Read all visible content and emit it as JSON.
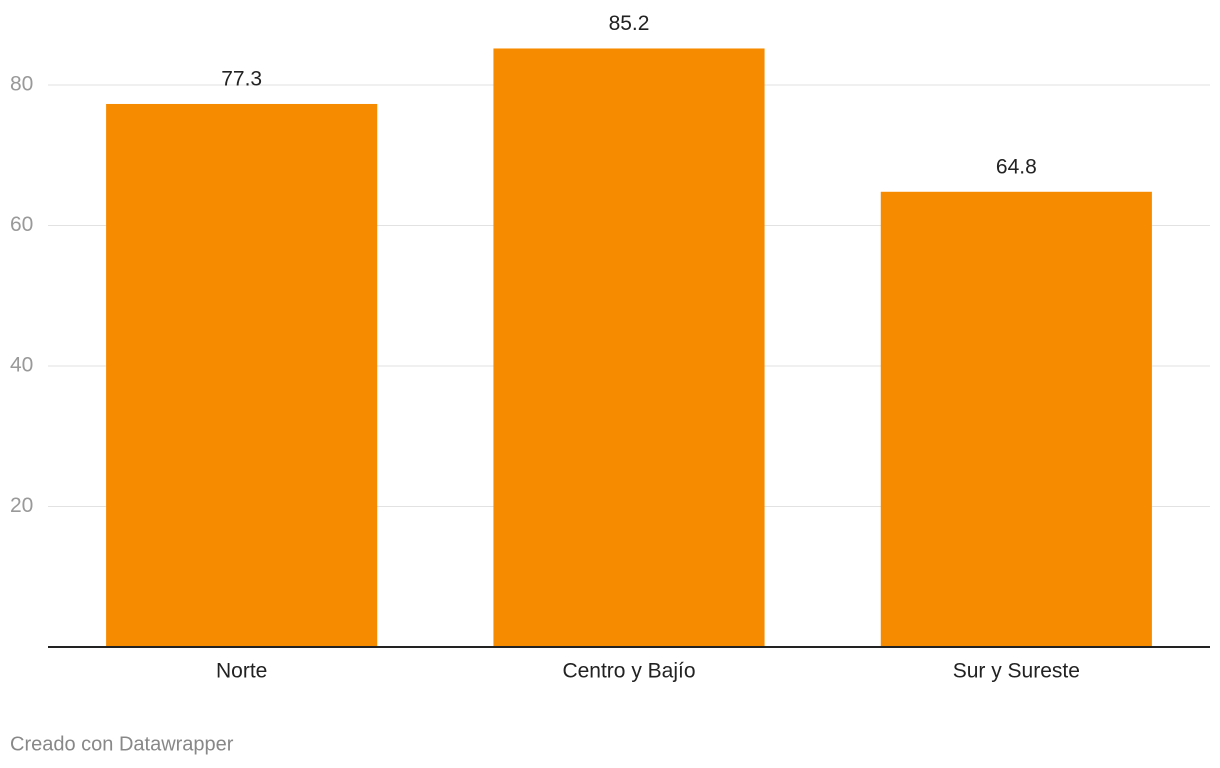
{
  "chart_data": {
    "type": "bar",
    "categories": [
      "Norte",
      "Centro y Bajío",
      "Sur y Sureste"
    ],
    "values": [
      77.3,
      85.2,
      64.8
    ],
    "color": "#f78b00",
    "ylim": [
      0,
      90
    ],
    "yticks": [
      20,
      40,
      60,
      80
    ],
    "grid": true,
    "credit": "Creado con Datawrapper"
  }
}
